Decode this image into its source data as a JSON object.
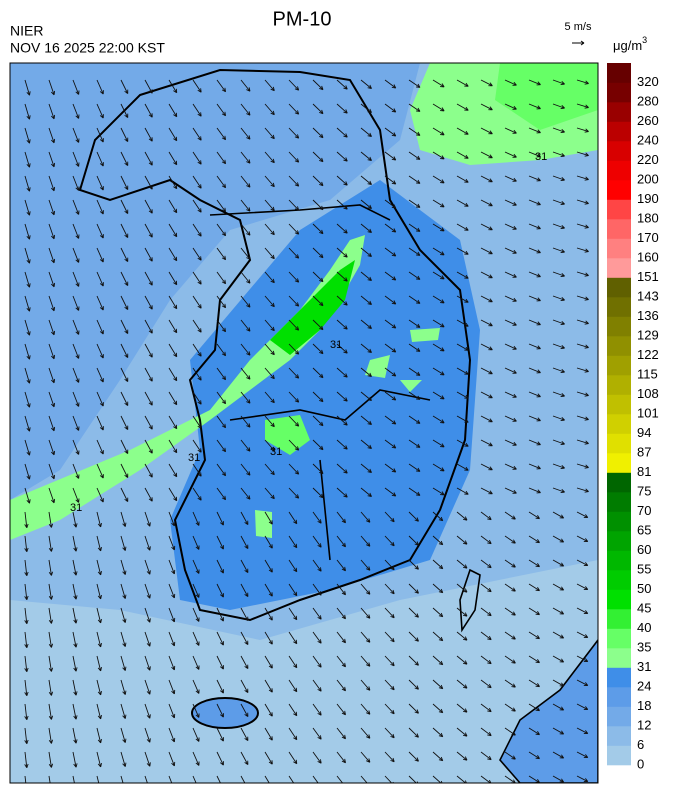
{
  "header": {
    "title": "PM-10",
    "agency": "NIER",
    "timestamp": "NOV 16 2025 22:00 KST"
  },
  "wind_scale": {
    "label": "5 m/s"
  },
  "legend": {
    "unit": "μg/m",
    "unit_sup": "3",
    "labels": [
      "0",
      "6",
      "12",
      "18",
      "24",
      "31",
      "35",
      "40",
      "45",
      "50",
      "55",
      "60",
      "65",
      "70",
      "75",
      "81",
      "87",
      "94",
      "101",
      "108",
      "115",
      "122",
      "129",
      "136",
      "143",
      "151",
      "160",
      "170",
      "180",
      "190",
      "200",
      "220",
      "240",
      "260",
      "280",
      "320"
    ],
    "colors": [
      "#a3cbe8",
      "#8cbbe8",
      "#73aae8",
      "#5d9ce8",
      "#3f8ee8",
      "#8cff8c",
      "#66ff66",
      "#33f033",
      "#00e000",
      "#00cc00",
      "#00b800",
      "#00a400",
      "#009000",
      "#007c00",
      "#006600",
      "#f0f000",
      "#e0e000",
      "#d0d000",
      "#c0c000",
      "#b0b000",
      "#a0a000",
      "#909000",
      "#808000",
      "#707000",
      "#606000",
      "#ff9a9a",
      "#ff8080",
      "#ff6666",
      "#ff4545",
      "#ff0000",
      "#ee0000",
      "#d80000",
      "#bb0000",
      "#990000",
      "#770000",
      "#660000"
    ]
  },
  "contour_labels": [
    "31",
    "31",
    "31",
    "31",
    "31"
  ]
}
